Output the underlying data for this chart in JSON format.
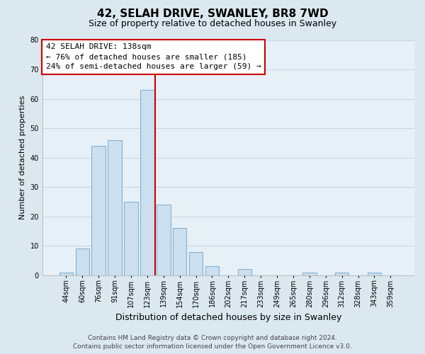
{
  "title": "42, SELAH DRIVE, SWANLEY, BR8 7WD",
  "subtitle": "Size of property relative to detached houses in Swanley",
  "xlabel": "Distribution of detached houses by size in Swanley",
  "ylabel": "Number of detached properties",
  "bar_labels": [
    "44sqm",
    "60sqm",
    "76sqm",
    "91sqm",
    "107sqm",
    "123sqm",
    "139sqm",
    "154sqm",
    "170sqm",
    "186sqm",
    "202sqm",
    "217sqm",
    "233sqm",
    "249sqm",
    "265sqm",
    "280sqm",
    "296sqm",
    "312sqm",
    "328sqm",
    "343sqm",
    "359sqm"
  ],
  "bar_values": [
    1,
    9,
    44,
    46,
    25,
    63,
    24,
    16,
    8,
    3,
    0,
    2,
    0,
    0,
    0,
    1,
    0,
    1,
    0,
    1,
    0
  ],
  "bar_color": "#ccdff0",
  "bar_edge_color": "#7fb3d3",
  "highlight_line_color": "#cc0000",
  "highlight_line_index": 6,
  "ylim": [
    0,
    80
  ],
  "yticks": [
    0,
    10,
    20,
    30,
    40,
    50,
    60,
    70,
    80
  ],
  "annotation_title": "42 SELAH DRIVE: 138sqm",
  "annotation_line1": "← 76% of detached houses are smaller (185)",
  "annotation_line2": "24% of semi-detached houses are larger (59) →",
  "annotation_box_color": "#ffffff",
  "annotation_box_edge_color": "#cc0000",
  "footer_line1": "Contains HM Land Registry data © Crown copyright and database right 2024.",
  "footer_line2": "Contains public sector information licensed under the Open Government Licence v3.0.",
  "bg_color": "#dce8f0",
  "plot_bg_color": "#e8f0f7",
  "grid_color": "#c5d8e8",
  "title_fontsize": 11,
  "subtitle_fontsize": 9,
  "xlabel_fontsize": 9,
  "ylabel_fontsize": 8,
  "tick_fontsize": 7,
  "annotation_fontsize": 8,
  "footer_fontsize": 6.5
}
